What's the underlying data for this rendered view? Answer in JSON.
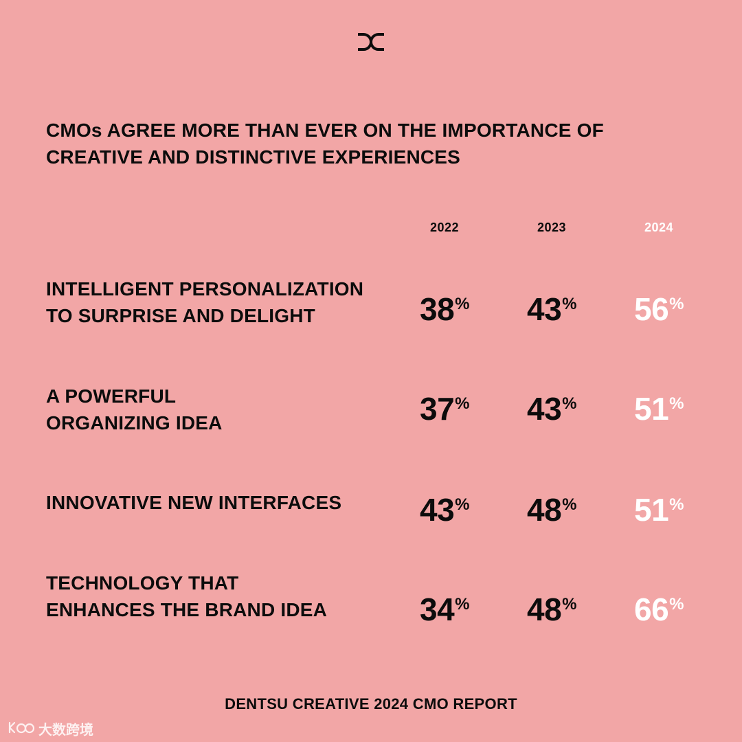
{
  "title": {
    "line1": "CMOs AGREE MORE THAN EVER ON THE IMPORTANCE OF",
    "line2": "CREATIVE AND DISTINCTIVE EXPERIENCES"
  },
  "footer": "DENTSU CREATIVE 2024 CMO REPORT",
  "watermark": "大数跨境",
  "colors": {
    "background": "#f2a6a6",
    "text": "#0c0c0c",
    "highlight_2024": "#ffffff"
  },
  "chart_data": {
    "type": "table",
    "columns": [
      "2022",
      "2023",
      "2024"
    ],
    "unit": "%",
    "rows": [
      {
        "label": [
          "INTELLIGENT PERSONALIZATION",
          "TO SURPRISE AND DELIGHT"
        ],
        "values": [
          "38",
          "43",
          "56"
        ]
      },
      {
        "label": [
          "A POWERFUL",
          "ORGANIZING IDEA"
        ],
        "values": [
          "37",
          "43",
          "51"
        ]
      },
      {
        "label": [
          "INNOVATIVE NEW INTERFACES"
        ],
        "values": [
          "43",
          "48",
          "51"
        ]
      },
      {
        "label": [
          "TECHNOLOGY THAT",
          "ENHANCES THE BRAND IDEA"
        ],
        "values": [
          "34",
          "48",
          "66"
        ]
      }
    ]
  }
}
